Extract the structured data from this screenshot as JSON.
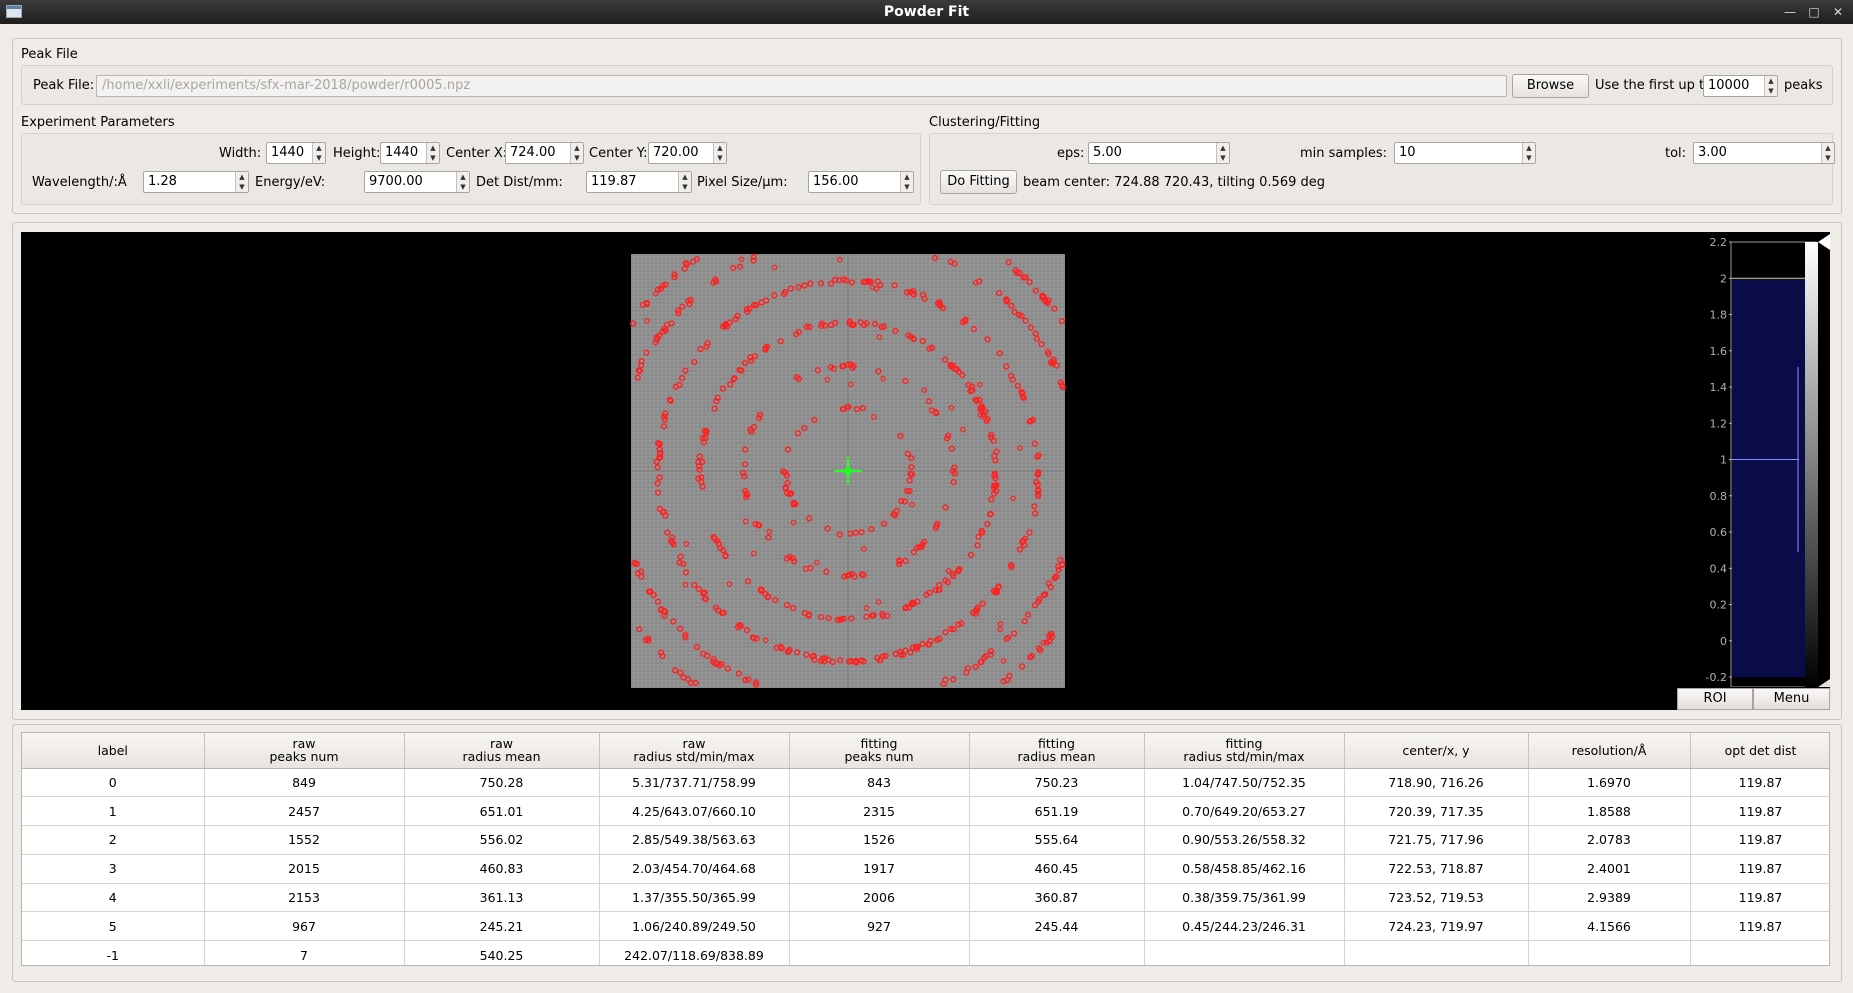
{
  "window": {
    "title": "Powder Fit"
  },
  "peak_file_group": {
    "title": "Peak File",
    "label": "Peak File:",
    "path": "/home/xxli/experiments/sfx-mar-2018/powder/r0005.npz",
    "browse_label": "Browse",
    "first_label": "Use the first up to",
    "first_value": "10000",
    "peaks_label": "peaks"
  },
  "experiment_group": {
    "title": "Experiment Parameters",
    "width_label": "Width:",
    "width": "1440",
    "height_label": "Height:",
    "height": "1440",
    "cx_label": "Center X:",
    "cx": "724.00",
    "cy_label": "Center Y:",
    "cy": "720.00",
    "wavelength_label": "Wavelength/:Å",
    "wavelength": "1.28",
    "energy_label": "Energy/eV:",
    "energy": "9700.00",
    "detdist_label": "Det Dist/mm:",
    "detdist": "119.87",
    "pixel_label": "Pixel Size/μm:",
    "pixel": "156.00"
  },
  "clustering_group": {
    "title": "Clustering/Fitting",
    "eps_label": "eps:",
    "eps": "5.00",
    "min_label": "min samples:",
    "min": "10",
    "tol_label": "tol:",
    "tol": "3.00",
    "fit_label": "Do Fitting",
    "result": "beam center: 724.88 720.43, tilting 0.569 deg"
  },
  "viewer": {
    "roi_label": "ROI",
    "menu_label": "Menu",
    "histogram_ticks": [
      "2.2",
      "2",
      "1.8",
      "1.6",
      "1.4",
      "1.2",
      "1",
      "0.8",
      "0.6",
      "0.4",
      "0.2",
      "0",
      "-0.2"
    ],
    "histogram_range": [
      -0.2,
      2.2
    ],
    "colors": {
      "peaks": "#ff2020",
      "center": "#20ff20",
      "background": "#000000",
      "histogram_fill": "#0a0c4a",
      "detector": "#8c8c8c"
    }
  },
  "table": {
    "headers": [
      "label",
      "raw\npeaks num",
      "raw\nradius mean",
      "raw\nradius std/min/max",
      "fitting\npeaks num",
      "fitting\nradius mean",
      "fitting\nradius std/min/max",
      "center/x, y",
      "resolution/Å",
      "opt det dist"
    ],
    "rows": [
      [
        "0",
        "849",
        "750.28",
        "5.31/737.71/758.99",
        "843",
        "750.23",
        "1.04/747.50/752.35",
        "718.90, 716.26",
        "1.6970",
        "119.87"
      ],
      [
        "1",
        "2457",
        "651.01",
        "4.25/643.07/660.10",
        "2315",
        "651.19",
        "0.70/649.20/653.27",
        "720.39, 717.35",
        "1.8588",
        "119.87"
      ],
      [
        "2",
        "1552",
        "556.02",
        "2.85/549.38/563.63",
        "1526",
        "555.64",
        "0.90/553.26/558.32",
        "721.75, 717.96",
        "2.0783",
        "119.87"
      ],
      [
        "3",
        "2015",
        "460.83",
        "2.03/454.70/464.68",
        "1917",
        "460.45",
        "0.58/458.85/462.16",
        "722.53, 718.87",
        "2.4001",
        "119.87"
      ],
      [
        "4",
        "2153",
        "361.13",
        "1.37/355.50/365.99",
        "2006",
        "360.87",
        "0.38/359.75/361.99",
        "723.52, 719.53",
        "2.9389",
        "119.87"
      ],
      [
        "5",
        "967",
        "245.21",
        "1.06/240.89/249.50",
        "927",
        "245.44",
        "0.45/244.23/246.31",
        "724.23, 719.97",
        "4.1566",
        "119.87"
      ],
      [
        "-1",
        "7",
        "540.25",
        "242.07/118.69/838.89",
        "",
        "",
        "",
        "",
        "",
        ""
      ]
    ]
  }
}
